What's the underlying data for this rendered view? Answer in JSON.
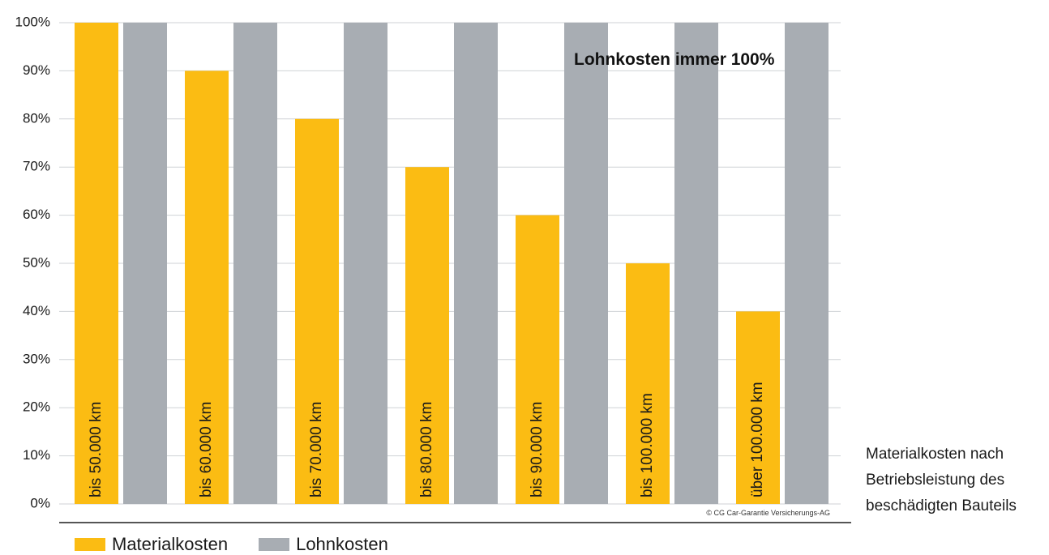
{
  "chart_data": {
    "type": "bar",
    "categories": [
      "bis 50.000 km",
      "bis 60.000 km",
      "bis 70.000 km",
      "bis 80.000 km",
      "bis 90.000 km",
      "bis 100.000 km",
      "über 100.000 km"
    ],
    "series": [
      {
        "name": "Materialkosten",
        "values": [
          100,
          90,
          80,
          70,
          60,
          50,
          40
        ],
        "color": "#fbbc13"
      },
      {
        "name": "Lohnkosten",
        "values": [
          100,
          100,
          100,
          100,
          100,
          100,
          100
        ],
        "color": "#a8adb3"
      }
    ],
    "y_ticks": [
      "0%",
      "10%",
      "20%",
      "30%",
      "40%",
      "50%",
      "60%",
      "70%",
      "80%",
      "90%",
      "100%"
    ],
    "ylim": [
      0,
      100
    ],
    "grid": true,
    "annotation": "Lohnkosten immer 100%",
    "copyright": "© CG Car-Garantie Versicherungs-AG",
    "legend_position": "bottom-left"
  },
  "legend": [
    {
      "label": "Materialkosten",
      "color": "#fbbc13"
    },
    {
      "label": "Lohnkosten",
      "color": "#a8adb3"
    }
  ],
  "side_note": {
    "line1": "Materialkosten nach",
    "line2": "Betriebsleistung des",
    "line3": "beschädigten Bauteils"
  }
}
